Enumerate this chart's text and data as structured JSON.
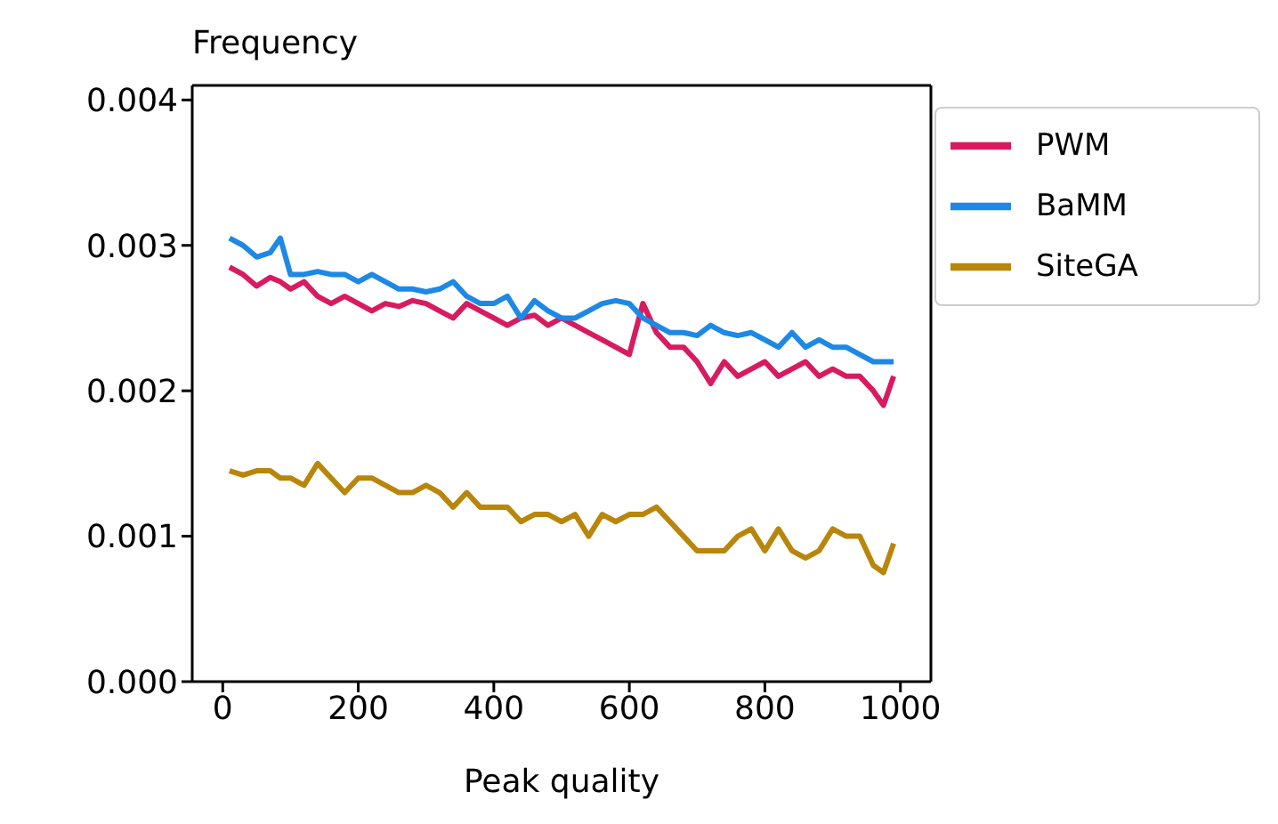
{
  "chart_data": {
    "type": "line",
    "xlabel": "Peak quality",
    "ylabel": "Frequency",
    "xlim": [
      -45,
      1045
    ],
    "xticks": [
      0,
      200,
      400,
      600,
      800,
      1000
    ],
    "ylim": [
      0,
      0.0041
    ],
    "yticks": [
      {
        "value": 0,
        "label": "0.000"
      },
      {
        "value": 0.001,
        "label": "0.001"
      },
      {
        "value": 0.002,
        "label": "0.002"
      },
      {
        "value": 0.003,
        "label": "0.003"
      },
      {
        "value": 0.004,
        "label": "0.004"
      }
    ],
    "x": [
      10,
      30,
      50,
      70,
      85,
      100,
      120,
      140,
      160,
      180,
      200,
      220,
      240,
      260,
      280,
      300,
      320,
      340,
      360,
      380,
      400,
      420,
      440,
      460,
      480,
      500,
      520,
      540,
      560,
      580,
      600,
      620,
      640,
      660,
      680,
      700,
      720,
      740,
      760,
      780,
      800,
      820,
      840,
      860,
      880,
      900,
      920,
      940,
      960,
      975,
      990
    ],
    "series": [
      {
        "name": "PWM",
        "color": "#d81b60",
        "values": [
          0.00285,
          0.0028,
          0.00272,
          0.00278,
          0.00275,
          0.0027,
          0.00275,
          0.00265,
          0.0026,
          0.00265,
          0.0026,
          0.00255,
          0.0026,
          0.00258,
          0.00262,
          0.0026,
          0.00255,
          0.0025,
          0.0026,
          0.00255,
          0.0025,
          0.00245,
          0.0025,
          0.00252,
          0.00245,
          0.0025,
          0.00245,
          0.0024,
          0.00235,
          0.0023,
          0.00225,
          0.0026,
          0.0024,
          0.0023,
          0.0023,
          0.0022,
          0.00205,
          0.0022,
          0.0021,
          0.00215,
          0.0022,
          0.0021,
          0.00215,
          0.0022,
          0.0021,
          0.00215,
          0.0021,
          0.0021,
          0.002,
          0.0019,
          0.0021
        ]
      },
      {
        "name": "BaMM",
        "color": "#1e88e5",
        "values": [
          0.00305,
          0.003,
          0.00292,
          0.00295,
          0.00305,
          0.0028,
          0.0028,
          0.00282,
          0.0028,
          0.0028,
          0.00275,
          0.0028,
          0.00275,
          0.0027,
          0.0027,
          0.00268,
          0.0027,
          0.00275,
          0.00265,
          0.0026,
          0.0026,
          0.00265,
          0.0025,
          0.00262,
          0.00255,
          0.0025,
          0.0025,
          0.00255,
          0.0026,
          0.00262,
          0.0026,
          0.0025,
          0.00245,
          0.0024,
          0.0024,
          0.00238,
          0.00245,
          0.0024,
          0.00238,
          0.0024,
          0.00235,
          0.0023,
          0.0024,
          0.0023,
          0.00235,
          0.0023,
          0.0023,
          0.00225,
          0.0022,
          0.0022,
          0.0022
        ]
      },
      {
        "name": "SiteGA",
        "color": "#b8860b",
        "values": [
          0.00145,
          0.00142,
          0.00145,
          0.00145,
          0.0014,
          0.0014,
          0.00135,
          0.0015,
          0.0014,
          0.0013,
          0.0014,
          0.0014,
          0.00135,
          0.0013,
          0.0013,
          0.00135,
          0.0013,
          0.0012,
          0.0013,
          0.0012,
          0.0012,
          0.0012,
          0.0011,
          0.00115,
          0.00115,
          0.0011,
          0.00115,
          0.001,
          0.00115,
          0.0011,
          0.00115,
          0.00115,
          0.0012,
          0.0011,
          0.001,
          0.0009,
          0.0009,
          0.0009,
          0.001,
          0.00105,
          0.0009,
          0.00105,
          0.0009,
          0.00085,
          0.0009,
          0.00105,
          0.001,
          0.001,
          0.0008,
          0.00075,
          0.00095
        ]
      }
    ],
    "legend": "top right"
  }
}
